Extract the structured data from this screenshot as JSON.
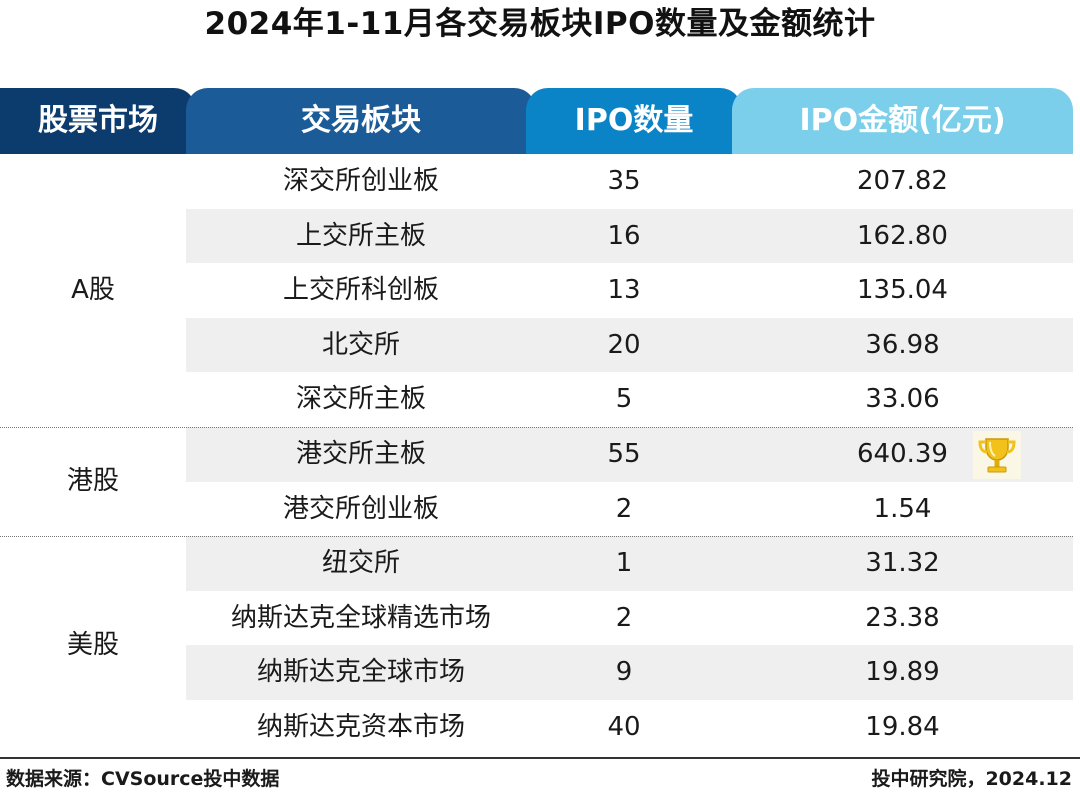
{
  "title": "2024年1-11月各交易板块IPO数量及金额统计",
  "headers": {
    "market": "股票市场",
    "board": "交易板块",
    "count": "IPO数量",
    "amount": "IPO金额(亿元)"
  },
  "markets": {
    "a_share": "A股",
    "hk": "港股",
    "us": "美股"
  },
  "rows": [
    {
      "board": "深交所创业板",
      "count": "35",
      "amount": "207.82"
    },
    {
      "board": "上交所主板",
      "count": "16",
      "amount": "162.80"
    },
    {
      "board": "上交所科创板",
      "count": "13",
      "amount": "135.04"
    },
    {
      "board": "北交所",
      "count": "20",
      "amount": "36.98"
    },
    {
      "board": "深交所主板",
      "count": "5",
      "amount": "33.06"
    },
    {
      "board": "港交所主板",
      "count": "55",
      "amount": "640.39"
    },
    {
      "board": "港交所创业板",
      "count": "2",
      "amount": "1.54"
    },
    {
      "board": "纽交所",
      "count": "1",
      "amount": "31.32"
    },
    {
      "board": "纳斯达克全球精选市场",
      "count": "2",
      "amount": "23.38"
    },
    {
      "board": "纳斯达克全球市场",
      "count": "9",
      "amount": "19.89"
    },
    {
      "board": "纳斯达克资本市场",
      "count": "40",
      "amount": "19.84"
    }
  ],
  "highlight_icon": "trophy-icon",
  "colors": {
    "header_market": "#0c3b6e",
    "header_board": "#1a5b98",
    "header_count": "#0b83c7",
    "header_amount": "#7ccfea",
    "row_shade": "#efefef",
    "trophy": "#f2c21a"
  },
  "footer": {
    "source": "数据来源：CVSource投中数据",
    "credit": "投中研究院，2024.12"
  }
}
